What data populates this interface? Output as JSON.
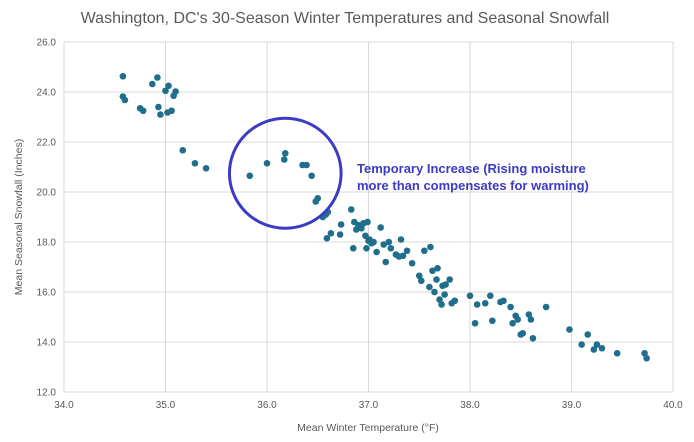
{
  "chart_data": {
    "type": "scatter",
    "title": "Washington, DC's 30-Season Winter Temperatures and Seasonal Snowfall",
    "xlabel": "Mean Winter Temperature (°F)",
    "ylabel": "Mean Seasonal Snowfall (Inches)",
    "xlim": [
      34.0,
      40.0
    ],
    "ylim": [
      12.0,
      26.0
    ],
    "xticks": [
      "34.0",
      "35.0",
      "36.0",
      "37.0",
      "38.0",
      "39.0",
      "40.0"
    ],
    "yticks": [
      "12.0",
      "14.0",
      "16.0",
      "18.0",
      "20.0",
      "22.0",
      "24.0",
      "26.0"
    ],
    "grid": true,
    "marker_color": "#1f6e8c",
    "points": [
      [
        34.58,
        24.63
      ],
      [
        34.58,
        23.82
      ],
      [
        34.6,
        23.68
      ],
      [
        34.75,
        23.35
      ],
      [
        34.78,
        23.25
      ],
      [
        34.87,
        24.32
      ],
      [
        34.92,
        24.58
      ],
      [
        34.93,
        23.4
      ],
      [
        34.95,
        23.1
      ],
      [
        35.0,
        24.05
      ],
      [
        35.02,
        23.18
      ],
      [
        35.03,
        24.25
      ],
      [
        35.06,
        23.25
      ],
      [
        35.08,
        23.85
      ],
      [
        35.1,
        24.02
      ],
      [
        35.17,
        21.67
      ],
      [
        35.29,
        21.15
      ],
      [
        35.4,
        20.95
      ],
      [
        35.83,
        20.65
      ],
      [
        36.0,
        21.15
      ],
      [
        36.17,
        21.3
      ],
      [
        36.18,
        21.55
      ],
      [
        36.35,
        21.08
      ],
      [
        36.39,
        21.08
      ],
      [
        36.44,
        20.65
      ],
      [
        36.48,
        19.62
      ],
      [
        36.5,
        19.75
      ],
      [
        36.55,
        19.0
      ],
      [
        36.58,
        19.1
      ],
      [
        36.59,
        18.15
      ],
      [
        36.6,
        19.2
      ],
      [
        36.63,
        18.35
      ],
      [
        36.72,
        18.3
      ],
      [
        36.73,
        18.7
      ],
      [
        36.83,
        19.3
      ],
      [
        36.85,
        17.75
      ],
      [
        36.86,
        18.8
      ],
      [
        36.88,
        18.5
      ],
      [
        36.9,
        18.68
      ],
      [
        36.93,
        18.55
      ],
      [
        36.95,
        18.75
      ],
      [
        36.97,
        18.25
      ],
      [
        36.98,
        17.75
      ],
      [
        36.99,
        18.8
      ],
      [
        37.0,
        18.05
      ],
      [
        37.01,
        18.1
      ],
      [
        37.03,
        17.95
      ],
      [
        37.05,
        18.0
      ],
      [
        37.08,
        17.6
      ],
      [
        37.12,
        18.58
      ],
      [
        37.15,
        17.9
      ],
      [
        37.17,
        17.2
      ],
      [
        37.2,
        18.0
      ],
      [
        37.22,
        17.75
      ],
      [
        37.27,
        17.5
      ],
      [
        37.3,
        17.42
      ],
      [
        37.32,
        18.1
      ],
      [
        37.34,
        17.45
      ],
      [
        37.38,
        17.65
      ],
      [
        37.43,
        17.15
      ],
      [
        37.5,
        16.65
      ],
      [
        37.52,
        16.45
      ],
      [
        37.55,
        17.65
      ],
      [
        37.6,
        16.2
      ],
      [
        37.61,
        17.8
      ],
      [
        37.63,
        16.85
      ],
      [
        37.65,
        16.0
      ],
      [
        37.67,
        16.5
      ],
      [
        37.68,
        16.95
      ],
      [
        37.7,
        15.7
      ],
      [
        37.72,
        15.5
      ],
      [
        37.73,
        16.25
      ],
      [
        37.75,
        15.9
      ],
      [
        37.76,
        16.3
      ],
      [
        37.8,
        16.5
      ],
      [
        37.82,
        15.55
      ],
      [
        37.85,
        15.65
      ],
      [
        38.0,
        15.85
      ],
      [
        38.05,
        14.75
      ],
      [
        38.07,
        15.5
      ],
      [
        38.15,
        15.55
      ],
      [
        38.2,
        15.85
      ],
      [
        38.22,
        14.85
      ],
      [
        38.3,
        15.6
      ],
      [
        38.33,
        15.65
      ],
      [
        38.4,
        15.4
      ],
      [
        38.42,
        14.75
      ],
      [
        38.45,
        15.05
      ],
      [
        38.47,
        14.9
      ],
      [
        38.5,
        14.3
      ],
      [
        38.52,
        14.35
      ],
      [
        38.58,
        15.1
      ],
      [
        38.6,
        14.9
      ],
      [
        38.62,
        14.15
      ],
      [
        38.75,
        15.4
      ],
      [
        38.98,
        14.5
      ],
      [
        39.1,
        13.9
      ],
      [
        39.16,
        14.3
      ],
      [
        39.22,
        13.7
      ],
      [
        39.25,
        13.9
      ],
      [
        39.3,
        13.75
      ],
      [
        39.45,
        13.55
      ],
      [
        39.72,
        13.55
      ],
      [
        39.74,
        13.35
      ]
    ],
    "annotation": {
      "lines": [
        "Temporary Increase (Rising moisture",
        "more than compensates for warming)"
      ],
      "color": "#3b3bc4",
      "highlight_center": [
        36.18,
        20.75
      ],
      "highlight_radius_x": 0.55,
      "highlight_radius_y": 2.2
    }
  }
}
